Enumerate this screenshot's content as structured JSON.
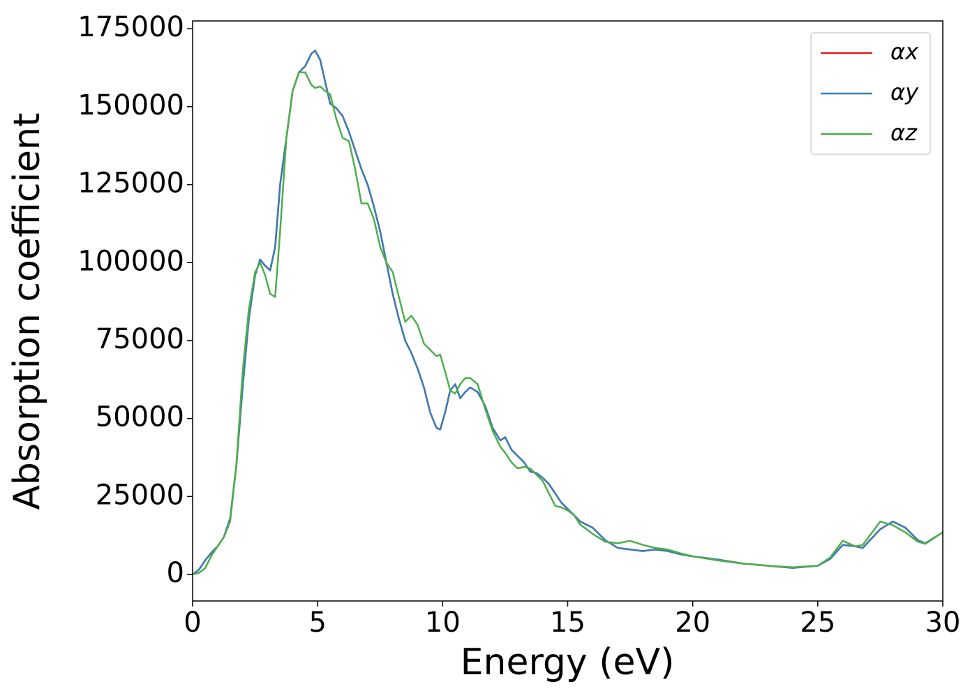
{
  "chart_data": {
    "type": "line",
    "x_label": "Energy (eV)",
    "y_label": "Absorption coefficient",
    "x": [
      0,
      0.25,
      0.5,
      0.75,
      1.0,
      1.25,
      1.5,
      1.75,
      2.0,
      2.25,
      2.5,
      2.7,
      2.9,
      3.1,
      3.3,
      3.5,
      3.75,
      4.0,
      4.25,
      4.5,
      4.75,
      4.9,
      5.1,
      5.3,
      5.5,
      5.75,
      6.0,
      6.25,
      6.5,
      6.75,
      7.0,
      7.25,
      7.5,
      7.75,
      8.0,
      8.25,
      8.5,
      8.75,
      9.0,
      9.25,
      9.5,
      9.75,
      9.9,
      10.1,
      10.3,
      10.5,
      10.7,
      10.9,
      11.1,
      11.4,
      11.7,
      12.0,
      12.3,
      12.5,
      12.75,
      13.0,
      13.25,
      13.5,
      13.75,
      14.0,
      14.25,
      14.5,
      14.75,
      15.0,
      15.25,
      15.5,
      16.0,
      16.5,
      17.0,
      17.5,
      18.0,
      18.5,
      19,
      19.5,
      20,
      21,
      22,
      23,
      24,
      25,
      25.5,
      26,
      26.5,
      26.8,
      27.5,
      28,
      28.5,
      29,
      29.3,
      30
    ],
    "series": [
      {
        "name": "αx",
        "color": "#e41a1c",
        "values": [
          0,
          1500,
          4500,
          7000,
          9000,
          12000,
          18000,
          35000,
          60000,
          82000,
          96000,
          101000,
          99000,
          97500,
          105000,
          125000,
          140000,
          155000,
          161000,
          163000,
          167000,
          168000,
          165000,
          158000,
          151000,
          149500,
          147000,
          142000,
          136000,
          130000,
          125000,
          118000,
          110000,
          100000,
          90000,
          82000,
          75000,
          71000,
          66000,
          60000,
          52000,
          47000,
          46500,
          52000,
          59000,
          61000,
          56500,
          58500,
          60000,
          58500,
          54000,
          47000,
          43000,
          44000,
          40000,
          38000,
          36000,
          33000,
          32500,
          31000,
          29000,
          26000,
          23000,
          21000,
          19000,
          17000,
          15000,
          11000,
          8500,
          8000,
          7500,
          8000,
          7500,
          6500,
          5800,
          4800,
          3500,
          2800,
          2100,
          2800,
          5000,
          9500,
          9000,
          8500,
          14500,
          17000,
          15000,
          11000,
          10000,
          13500
        ]
      },
      {
        "name": "αy",
        "color": "#377eb8",
        "values": [
          0,
          1500,
          4500,
          7000,
          9000,
          12000,
          18000,
          35000,
          60000,
          82000,
          96000,
          101000,
          99000,
          97500,
          105000,
          125000,
          140000,
          155000,
          161000,
          163000,
          167000,
          168000,
          165000,
          158000,
          151000,
          149500,
          147000,
          142000,
          136000,
          130000,
          125000,
          118000,
          110000,
          100000,
          90000,
          82000,
          75000,
          71000,
          66000,
          60000,
          52000,
          47000,
          46500,
          52000,
          59000,
          61000,
          56500,
          58500,
          60000,
          58500,
          54000,
          47000,
          43000,
          44000,
          40000,
          38000,
          36000,
          33000,
          32500,
          31000,
          29000,
          26000,
          23000,
          21000,
          19000,
          17000,
          15000,
          11000,
          8500,
          8000,
          7500,
          8000,
          7500,
          6500,
          5800,
          4800,
          3500,
          2800,
          2100,
          2800,
          5000,
          9500,
          9000,
          8500,
          14500,
          17000,
          15000,
          11000,
          10000,
          13500
        ]
      },
      {
        "name": "αz",
        "color": "#4daf4a",
        "values": [
          0,
          500,
          2000,
          6000,
          9000,
          12000,
          17000,
          35000,
          65000,
          85000,
          97000,
          100000,
          96000,
          90000,
          89000,
          110000,
          140000,
          155000,
          161000,
          161000,
          157000,
          156000,
          156500,
          155000,
          154000,
          146000,
          140000,
          139000,
          130000,
          119000,
          119000,
          114000,
          105000,
          100000,
          97000,
          89000,
          81000,
          83000,
          80000,
          74000,
          72000,
          70000,
          70500,
          65000,
          59000,
          58000,
          61000,
          63000,
          63000,
          61000,
          53000,
          46000,
          41000,
          39000,
          36000,
          34000,
          34500,
          34000,
          32000,
          30000,
          26000,
          22000,
          21500,
          20500,
          19000,
          16000,
          13000,
          10500,
          10000,
          10800,
          9500,
          8500,
          8000,
          6800,
          5800,
          4500,
          3500,
          2800,
          2300,
          2800,
          5500,
          10800,
          9000,
          9500,
          17000,
          15800,
          13500,
          10500,
          9800,
          13500
        ]
      }
    ],
    "xlim": [
      0,
      30
    ],
    "xticks": [
      0,
      5,
      10,
      15,
      20,
      25,
      30
    ],
    "ylim": [
      -8500,
      177500
    ],
    "yticks": [
      0,
      25000,
      50000,
      75000,
      100000,
      125000,
      150000,
      175000
    ],
    "legend": "upper right"
  }
}
